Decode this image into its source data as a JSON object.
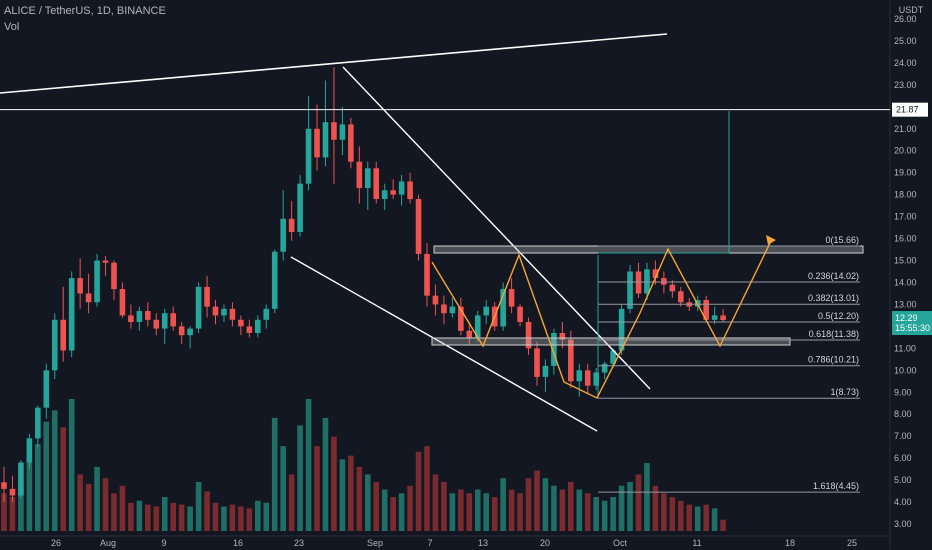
{
  "header": {
    "symbol_line": "ALICE / TetherUS, 1D, BINANCE",
    "volume_label": "Vol",
    "currency": "USDT"
  },
  "price_badge": {
    "price": "12.29",
    "countdown": "15:55:30"
  },
  "level_badge": "21.87",
  "colors": {
    "up": "#26a69a",
    "down": "#ef5350",
    "up_vol": "#1f6f67",
    "down_vol": "#7a2b2f",
    "bg": "#131722",
    "pattern": "#f7a534",
    "line": "#ffffff"
  },
  "chart_data": {
    "type": "candlestick",
    "title": "ALICE / TetherUS, 1D, BINANCE",
    "ylim": [
      2.6,
      26.4
    ],
    "y_ticks": [
      "26.00",
      "25.00",
      "24.00",
      "23.00",
      "22.00",
      "21.00",
      "20.00",
      "19.00",
      "18.00",
      "17.00",
      "16.00",
      "15.00",
      "14.00",
      "13.00",
      "12.00",
      "11.00",
      "10.00",
      "9.00",
      "8.00",
      "7.00",
      "6.00",
      "5.00",
      "4.00",
      "3.00"
    ],
    "x_ticks": [
      "26",
      "Aug",
      "9",
      "16",
      "23",
      "Sep",
      "7",
      "13",
      "20",
      "Oct",
      "11",
      "18",
      "25"
    ],
    "candles": [
      [
        4.9,
        5.6,
        4.0,
        4.6,
        20
      ],
      [
        4.6,
        5.2,
        4.0,
        4.3,
        18
      ],
      [
        4.3,
        5.9,
        4.2,
        5.8,
        26
      ],
      [
        5.8,
        7.1,
        5.5,
        6.9,
        38
      ],
      [
        6.9,
        8.4,
        6.5,
        8.3,
        46
      ],
      [
        8.3,
        10.3,
        7.8,
        10.0,
        58
      ],
      [
        10.0,
        12.6,
        9.6,
        12.3,
        64
      ],
      [
        12.3,
        13.8,
        10.4,
        10.9,
        55
      ],
      [
        10.9,
        14.5,
        10.6,
        14.2,
        70
      ],
      [
        14.2,
        15.1,
        12.8,
        13.5,
        30
      ],
      [
        13.5,
        14.4,
        12.6,
        13.1,
        25
      ],
      [
        13.1,
        15.3,
        12.9,
        15.0,
        34
      ],
      [
        15.0,
        15.2,
        14.3,
        14.9,
        28
      ],
      [
        14.9,
        15.0,
        13.2,
        13.7,
        20
      ],
      [
        13.7,
        14.0,
        12.4,
        12.5,
        24
      ],
      [
        12.5,
        13.0,
        11.9,
        12.2,
        15
      ],
      [
        12.2,
        12.9,
        11.8,
        12.7,
        16
      ],
      [
        12.7,
        13.1,
        12.0,
        12.3,
        14
      ],
      [
        12.3,
        12.6,
        11.6,
        11.9,
        13
      ],
      [
        11.9,
        12.8,
        11.2,
        12.6,
        18
      ],
      [
        12.6,
        12.9,
        11.8,
        12.0,
        15
      ],
      [
        12.0,
        12.2,
        11.2,
        11.6,
        14
      ],
      [
        11.6,
        12.0,
        11.0,
        11.9,
        13
      ],
      [
        11.9,
        14.0,
        11.7,
        13.8,
        26
      ],
      [
        13.8,
        14.3,
        12.4,
        12.9,
        21
      ],
      [
        12.9,
        13.2,
        12.1,
        12.5,
        15
      ],
      [
        12.5,
        13.0,
        12.2,
        12.8,
        13
      ],
      [
        12.8,
        13.1,
        12.0,
        12.3,
        14
      ],
      [
        12.3,
        12.5,
        11.6,
        12.0,
        13
      ],
      [
        12.0,
        12.3,
        11.5,
        11.7,
        12
      ],
      [
        11.7,
        12.5,
        11.5,
        12.3,
        16
      ],
      [
        12.3,
        13.0,
        11.9,
        12.8,
        15
      ],
      [
        12.8,
        15.5,
        12.6,
        15.4,
        60
      ],
      [
        15.4,
        18.2,
        15.0,
        16.9,
        45
      ],
      [
        16.9,
        17.7,
        15.9,
        16.3,
        30
      ],
      [
        16.3,
        18.9,
        16.1,
        18.5,
        56
      ],
      [
        18.5,
        22.5,
        18.2,
        21.0,
        70
      ],
      [
        21.0,
        22.1,
        19.1,
        19.7,
        45
      ],
      [
        19.7,
        23.2,
        19.3,
        21.3,
        60
      ],
      [
        21.3,
        23.8,
        18.5,
        20.5,
        50
      ],
      [
        20.5,
        22.0,
        19.8,
        21.2,
        38
      ],
      [
        21.2,
        21.5,
        19.2,
        19.5,
        40
      ],
      [
        19.5,
        20.2,
        17.6,
        18.3,
        34
      ],
      [
        18.3,
        19.5,
        17.3,
        19.2,
        30
      ],
      [
        19.2,
        19.5,
        17.6,
        17.8,
        26
      ],
      [
        17.8,
        18.5,
        17.3,
        18.2,
        22
      ],
      [
        18.2,
        18.7,
        17.8,
        18.0,
        18
      ],
      [
        18.0,
        18.9,
        17.5,
        18.6,
        20
      ],
      [
        18.6,
        19.0,
        17.6,
        17.8,
        24
      ],
      [
        17.8,
        18.0,
        15.0,
        15.3,
        42
      ],
      [
        15.3,
        15.8,
        12.9,
        13.4,
        45
      ],
      [
        13.4,
        13.9,
        12.5,
        13.0,
        30
      ],
      [
        13.0,
        13.4,
        12.1,
        12.6,
        26
      ],
      [
        12.6,
        13.3,
        12.4,
        12.9,
        20
      ],
      [
        12.9,
        13.3,
        11.6,
        11.8,
        22
      ],
      [
        11.8,
        12.2,
        11.2,
        11.5,
        20
      ],
      [
        11.5,
        12.7,
        11.3,
        12.5,
        22
      ],
      [
        12.5,
        13.2,
        12.1,
        12.9,
        20
      ],
      [
        12.9,
        13.1,
        11.8,
        12.0,
        18
      ],
      [
        12.0,
        14.0,
        11.8,
        13.7,
        28
      ],
      [
        13.7,
        14.2,
        12.6,
        12.9,
        22
      ],
      [
        12.9,
        13.0,
        12.0,
        12.2,
        20
      ],
      [
        12.2,
        12.4,
        10.7,
        11.0,
        28
      ],
      [
        11.0,
        11.3,
        9.3,
        9.7,
        32
      ],
      [
        9.7,
        10.5,
        9.0,
        10.2,
        28
      ],
      [
        10.2,
        11.9,
        9.8,
        11.7,
        24
      ],
      [
        11.7,
        12.2,
        11.0,
        11.4,
        22
      ],
      [
        11.4,
        11.8,
        9.2,
        9.5,
        26
      ],
      [
        9.5,
        10.3,
        8.8,
        10.0,
        22
      ],
      [
        10.0,
        10.3,
        8.9,
        9.3,
        20
      ],
      [
        9.3,
        10.1,
        9.1,
        9.9,
        18
      ],
      [
        9.9,
        10.4,
        9.6,
        10.3,
        16
      ],
      [
        10.3,
        11.0,
        10.1,
        10.9,
        18
      ],
      [
        10.9,
        13.0,
        10.7,
        12.8,
        24
      ],
      [
        12.8,
        14.8,
        12.6,
        14.5,
        26
      ],
      [
        14.5,
        14.9,
        13.3,
        13.5,
        30
      ],
      [
        13.5,
        14.9,
        13.2,
        14.6,
        36
      ],
      [
        14.6,
        15.0,
        13.9,
        14.2,
        24
      ],
      [
        14.2,
        14.5,
        13.5,
        13.9,
        20
      ],
      [
        13.9,
        14.1,
        13.3,
        13.6,
        18
      ],
      [
        13.6,
        13.8,
        12.9,
        13.1,
        16
      ],
      [
        13.1,
        13.3,
        12.7,
        12.9,
        14
      ],
      [
        12.9,
        13.4,
        12.7,
        13.2,
        13
      ],
      [
        13.2,
        13.4,
        12.2,
        12.3,
        14
      ],
      [
        12.3,
        12.9,
        12.1,
        12.5,
        12
      ],
      [
        12.5,
        12.8,
        12.2,
        12.29,
        6
      ]
    ],
    "fibonacci": [
      {
        "label": "0(15.66)",
        "value": 15.66
      },
      {
        "label": "0.236(14.02)",
        "value": 14.02
      },
      {
        "label": "0.382(13.01)",
        "value": 13.01
      },
      {
        "label": "0.5(12.20)",
        "value": 12.2
      },
      {
        "label": "0.618(11.38)",
        "value": 11.38
      },
      {
        "label": "0.786(10.21)",
        "value": 10.21
      },
      {
        "label": "1(8.73)",
        "value": 8.73
      },
      {
        "label": "1.618(4.45)",
        "value": 4.45
      }
    ],
    "horizontal_level": 21.87,
    "grid": false
  }
}
